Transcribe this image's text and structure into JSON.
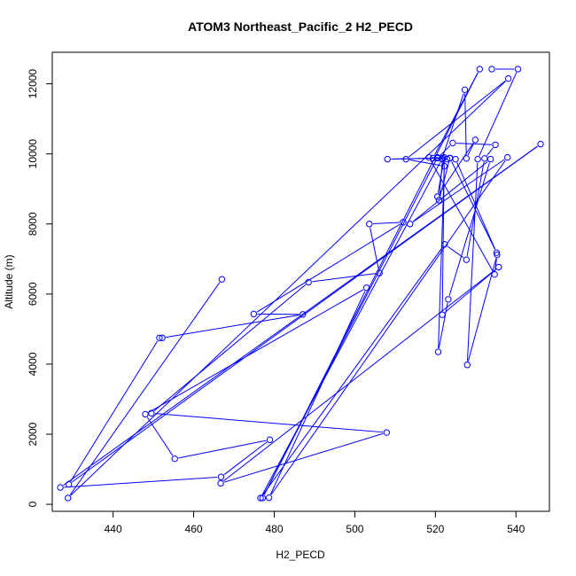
{
  "chart_data": {
    "type": "line",
    "title": "ATOM3 Northeast_Pacific_2 H2_PECD",
    "xlabel": "H2_PECD",
    "ylabel": "Altitude (m)",
    "xlim": [
      424.9,
      548.3
    ],
    "ylim": [
      -200,
      12900
    ],
    "x_ticks": [
      440,
      460,
      480,
      500,
      520,
      540
    ],
    "y_ticks": [
      0,
      2000,
      4000,
      6000,
      8000,
      10000,
      12000
    ],
    "series_color": "#0000ff",
    "marker": "open-circle",
    "x": [
      467.0,
      428.8,
      538.1,
      512.7,
      522.2,
      520.7,
      523.2,
      533.7,
      513.7,
      537.9,
      478.7,
      502.9,
      448.0,
      455.3,
      478.9,
      466.8,
      426.9,
      546.1,
      429.0,
      451.5,
      452.2,
      487.1,
      474.9,
      512.0,
      503.6,
      506.1,
      488.5,
      449.5,
      507.9,
      466.7,
      535.7,
      521.7,
      522.2,
      520.5,
      529.9,
      527.7,
      527.3,
      521.6,
      476.6,
      522.3,
      527.7,
      532.2,
      534.9,
      524.3,
      520.5,
      508.1,
      521.8,
      520.9,
      523.6,
      525.0,
      535.2,
      523.6,
      520.5,
      477.1,
      531.0,
      519.4,
      522.9,
      523.6,
      518.4,
      534.7,
      535.3,
      527.9,
      530.5,
      540.5,
      534.0
    ],
    "y": [
      6420,
      180,
      12150,
      9850,
      9650,
      4350,
      5850,
      9850,
      8000,
      9900,
      190,
      6180,
      2570,
      1300,
      1840,
      780,
      480,
      10280,
      570,
      4750,
      4750,
      5420,
      5430,
      8050,
      8000,
      6600,
      6340,
      2600,
      2050,
      600,
      6770,
      5410,
      9900,
      8780,
      10400,
      9870,
      11830,
      9850,
      180,
      7420,
      6980,
      9870,
      10260,
      10310,
      9880,
      9850,
      9880,
      8680,
      9880,
      9850,
      7180,
      9880,
      9900,
      180,
      12420,
      9880,
      9850,
      9880,
      9900,
      6560,
      7120,
      3980,
      9850,
      12420,
      12420
    ]
  }
}
